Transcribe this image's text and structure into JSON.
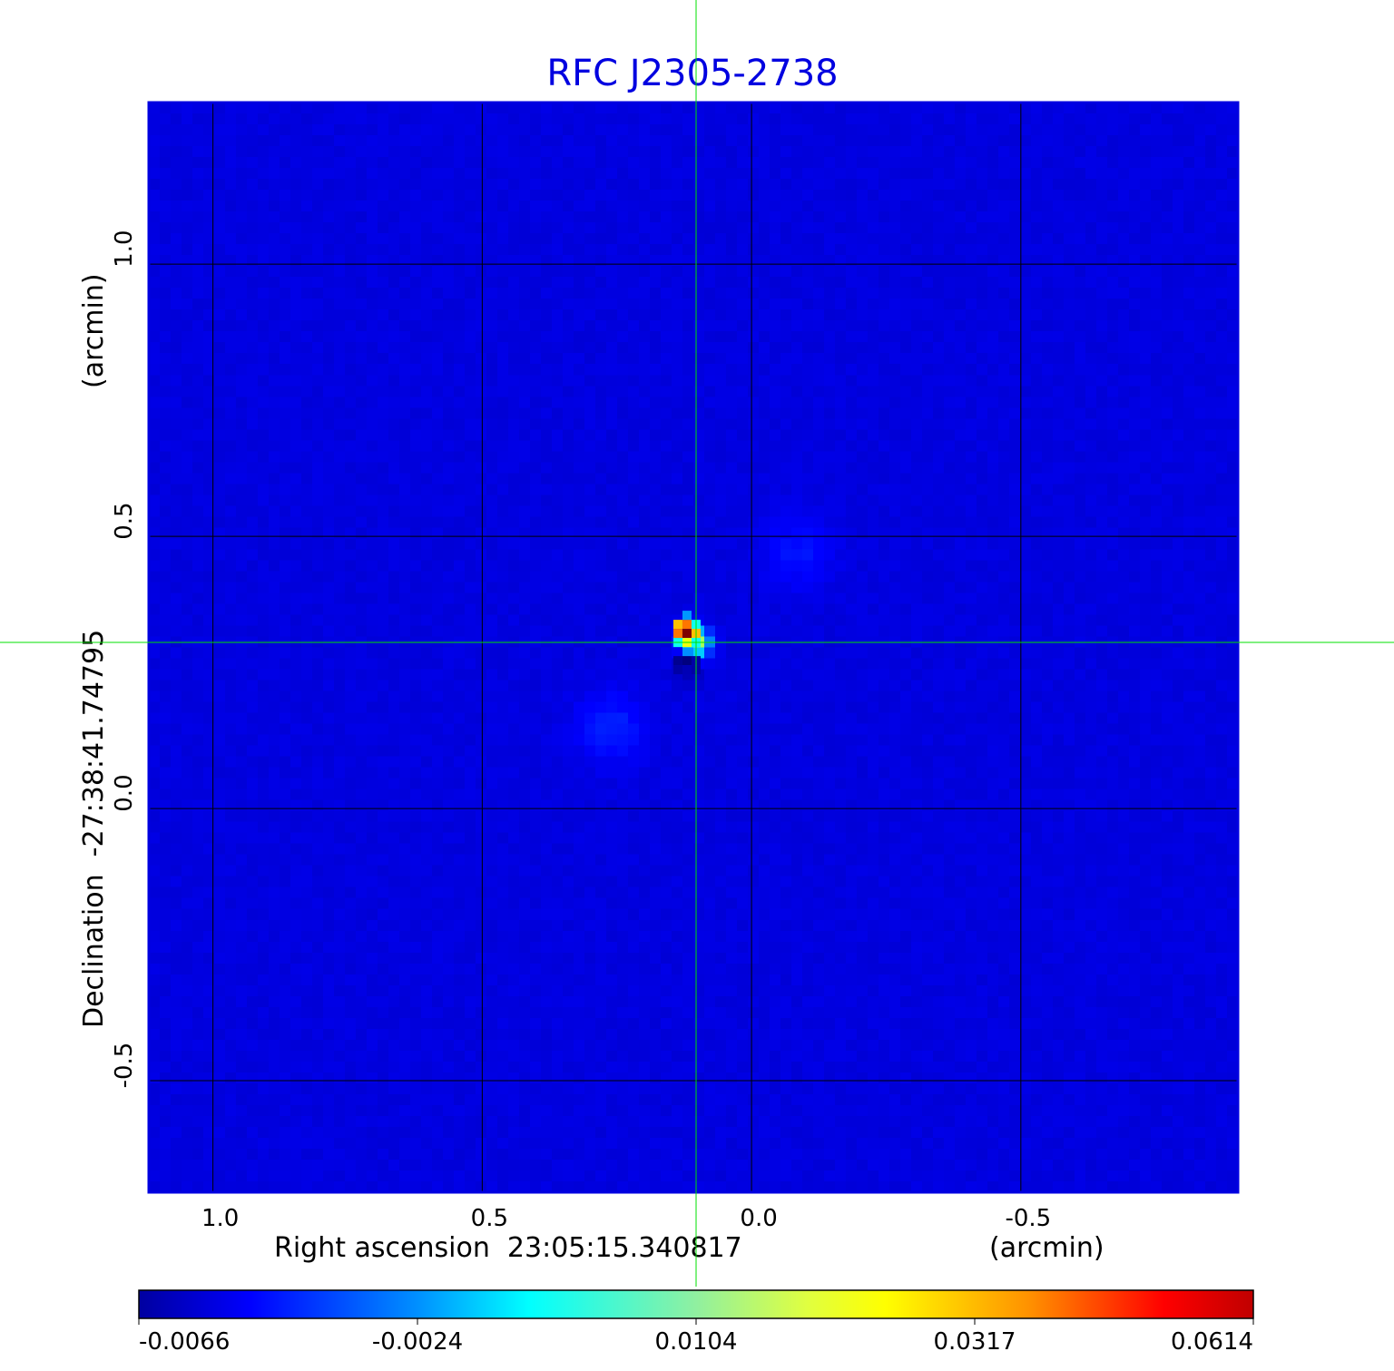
{
  "chart_data": {
    "type": "heatmap",
    "title": "RFC J2305-2738",
    "xlabel": "Right ascension  23:05:15.340817",
    "xunit": "(arcmin)",
    "ylabel": "Declination  -27:38:41.74795",
    "yunit": "(arcmin)",
    "xlim": [
      1.119,
      -0.903
    ],
    "ylim": [
      -0.705,
      1.297
    ],
    "xticks": [
      {
        "v": 1.0,
        "label": "1.0"
      },
      {
        "v": 0.5,
        "label": "0.5"
      },
      {
        "v": 0.0,
        "label": "0.0"
      },
      {
        "v": -0.5,
        "label": "-0.5"
      }
    ],
    "yticks": [
      {
        "v": 1.0,
        "label": "1.0"
      },
      {
        "v": 0.5,
        "label": "0.5"
      },
      {
        "v": 0.0,
        "label": "0.0"
      },
      {
        "v": -0.5,
        "label": "-0.5"
      }
    ],
    "grid": true,
    "crosshair": {
      "x": 0.103,
      "y": 0.305
    },
    "colormap": "jet",
    "colorbar": {
      "range": [
        -0.0066,
        0.0614
      ],
      "ticks": [
        "-0.0066",
        "-0.0024",
        "0.0104",
        "0.0317",
        "0.0614"
      ],
      "placement": "bottom"
    },
    "background_level": -0.0002,
    "features": [
      {
        "name": "source-peak",
        "x": 0.103,
        "y": 0.305,
        "value": 0.0614
      },
      {
        "name": "negative-sidelobe",
        "x": 0.113,
        "y": 0.245,
        "value": -0.0066
      },
      {
        "name": "sidelobe-ne",
        "x": -0.085,
        "y": 0.47,
        "value": 0.004
      },
      {
        "name": "sidelobe-sw",
        "x": 0.26,
        "y": 0.15,
        "value": 0.005
      }
    ]
  },
  "colors": {
    "title": "#0000e0",
    "frame": "#0000e0",
    "crosshair": "#00e000",
    "grid": "#000000"
  }
}
